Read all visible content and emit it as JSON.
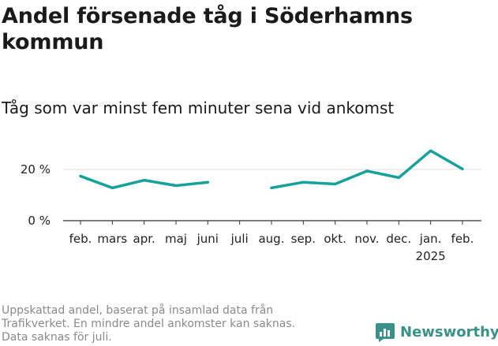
{
  "title": "Andel försenade tåg i Söderhamns kommun",
  "subtitle": "Tåg som var minst fem minuter sena vid ankomst",
  "footnote": [
    "Uppskattad andel, baserat på insamlad data från",
    "Trafikverket. En mindre andel ankomster kan saknas.",
    "Data saknas för juli."
  ],
  "brand": "Newsworthy",
  "colors": {
    "line": "#16a19a",
    "grid": "#dddddd",
    "axis": "#333333",
    "brand": "#3a9189"
  },
  "chart_data": {
    "type": "line",
    "title": "Andel försenade tåg i Söderhamns kommun",
    "ylabel": "",
    "xlabel": "",
    "ylim": [
      0,
      30
    ],
    "y_ticks": [
      {
        "value": 0,
        "label": "0 %"
      },
      {
        "value": 20,
        "label": "20 %"
      }
    ],
    "categories": [
      "feb.",
      "mars",
      "apr.",
      "maj",
      "juni",
      "juli",
      "aug.",
      "sep.",
      "okt.",
      "nov.",
      "dec.",
      "jan.",
      "feb."
    ],
    "year_labels": [
      {
        "index": 11,
        "label": "2025"
      }
    ],
    "series": [
      {
        "name": "Andel försenade tåg",
        "values": [
          17.4,
          12.8,
          15.8,
          13.7,
          15.0,
          null,
          12.8,
          15.0,
          14.3,
          19.4,
          16.8,
          27.3,
          20.2
        ]
      }
    ]
  }
}
